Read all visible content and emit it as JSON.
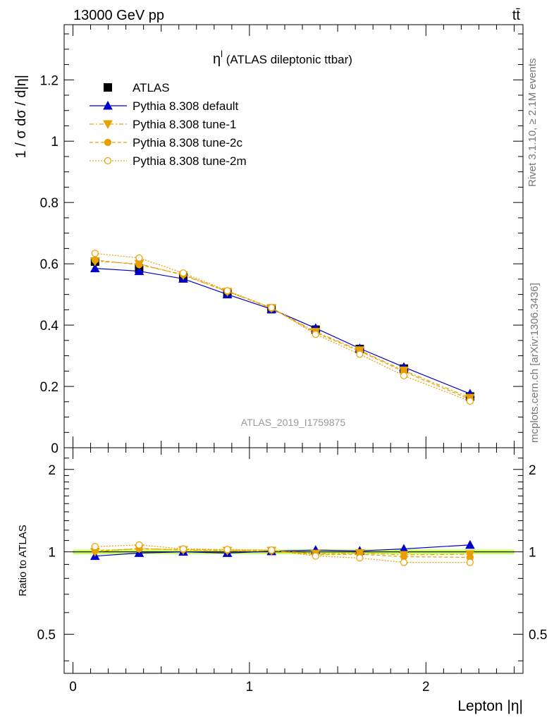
{
  "header": {
    "left": "13000 GeV pp",
    "right": "tt̄"
  },
  "side_labels": {
    "rivet": "Rivet 3.1.10, ≥ 2.1M events",
    "mcplots": "mcplots.cern.ch [arXiv:1306.3436]"
  },
  "watermark": "ATLAS_2019_I1759875",
  "colors": {
    "data": "#000000",
    "default": "#0000cc",
    "tunes": "#e8a000",
    "band": "#ccff66"
  },
  "chart_data": [
    {
      "type": "line",
      "title": "η^l (ATLAS dileptonic ttbar)",
      "title_main": "η",
      "title_sup": "l",
      "title_rest": " (ATLAS dileptonic ttbar)",
      "ylabel": "1 / σ  dσ / d|η|",
      "xlim": [
        -0.05,
        2.55
      ],
      "ylim": [
        0,
        1.38
      ],
      "yticks": [
        0,
        0.2,
        0.4,
        0.6,
        0.8,
        1,
        1.2
      ],
      "ytick_labels": [
        "0",
        "0.2",
        "0.4",
        "0.6",
        "0.8",
        "1",
        "1.2"
      ],
      "x": [
        0.125,
        0.375,
        0.625,
        0.875,
        1.125,
        1.375,
        1.625,
        1.875,
        2.25
      ],
      "legend_position": "top-left",
      "series": [
        {
          "name": "ATLAS",
          "style": "data",
          "values": [
            0.607,
            0.584,
            0.556,
            0.503,
            0.452,
            0.385,
            0.322,
            0.258,
            0.167
          ]
        },
        {
          "name": "Pythia 8.308 default",
          "style": "default",
          "values": [
            0.585,
            0.576,
            0.551,
            0.5,
            0.452,
            0.39,
            0.324,
            0.263,
            0.176
          ]
        },
        {
          "name": "Pythia 8.308 tune-1",
          "style": "tune1",
          "values": [
            0.608,
            0.6,
            0.563,
            0.509,
            0.456,
            0.378,
            0.318,
            0.252,
            0.163
          ]
        },
        {
          "name": "Pythia 8.308 tune-2c",
          "style": "tune2c",
          "values": [
            0.612,
            0.597,
            0.565,
            0.51,
            0.455,
            0.375,
            0.315,
            0.248,
            0.158
          ]
        },
        {
          "name": "Pythia 8.308 tune-2m",
          "style": "tune2m",
          "values": [
            0.634,
            0.619,
            0.57,
            0.512,
            0.457,
            0.37,
            0.305,
            0.235,
            0.152
          ]
        }
      ]
    },
    {
      "type": "line",
      "ylabel": "Ratio to ATLAS",
      "xlabel": "Lepton |η|",
      "xlim": [
        -0.05,
        2.55
      ],
      "ylim": [
        0.36,
        2.4
      ],
      "ylog": true,
      "yticks": [
        0.5,
        1,
        2
      ],
      "ytick_labels": [
        "0.5",
        "1",
        "2"
      ],
      "xticks": [
        0,
        1,
        2
      ],
      "xtick_labels": [
        "0",
        "1",
        "2"
      ],
      "x": [
        0.125,
        0.375,
        0.625,
        0.875,
        1.125,
        1.375,
        1.625,
        1.875,
        2.25
      ],
      "band": {
        "low": 0.98,
        "high": 1.02
      },
      "series": [
        {
          "name": "Pythia 8.308 default",
          "style": "default",
          "values": [
            0.965,
            0.99,
            1.0,
            0.99,
            1.005,
            1.015,
            1.008,
            1.025,
            1.06
          ]
        },
        {
          "name": "Pythia 8.308 tune-1",
          "style": "tune1",
          "values": [
            1.0,
            1.03,
            1.015,
            1.01,
            1.01,
            0.985,
            0.99,
            0.975,
            0.98
          ]
        },
        {
          "name": "Pythia 8.308 tune-2c",
          "style": "tune2c",
          "values": [
            1.01,
            1.025,
            1.02,
            1.015,
            1.01,
            0.975,
            0.98,
            0.96,
            0.955
          ]
        },
        {
          "name": "Pythia 8.308 tune-2m",
          "style": "tune2m",
          "values": [
            1.045,
            1.06,
            1.025,
            1.02,
            1.015,
            0.965,
            0.95,
            0.915,
            0.915
          ]
        }
      ]
    }
  ]
}
